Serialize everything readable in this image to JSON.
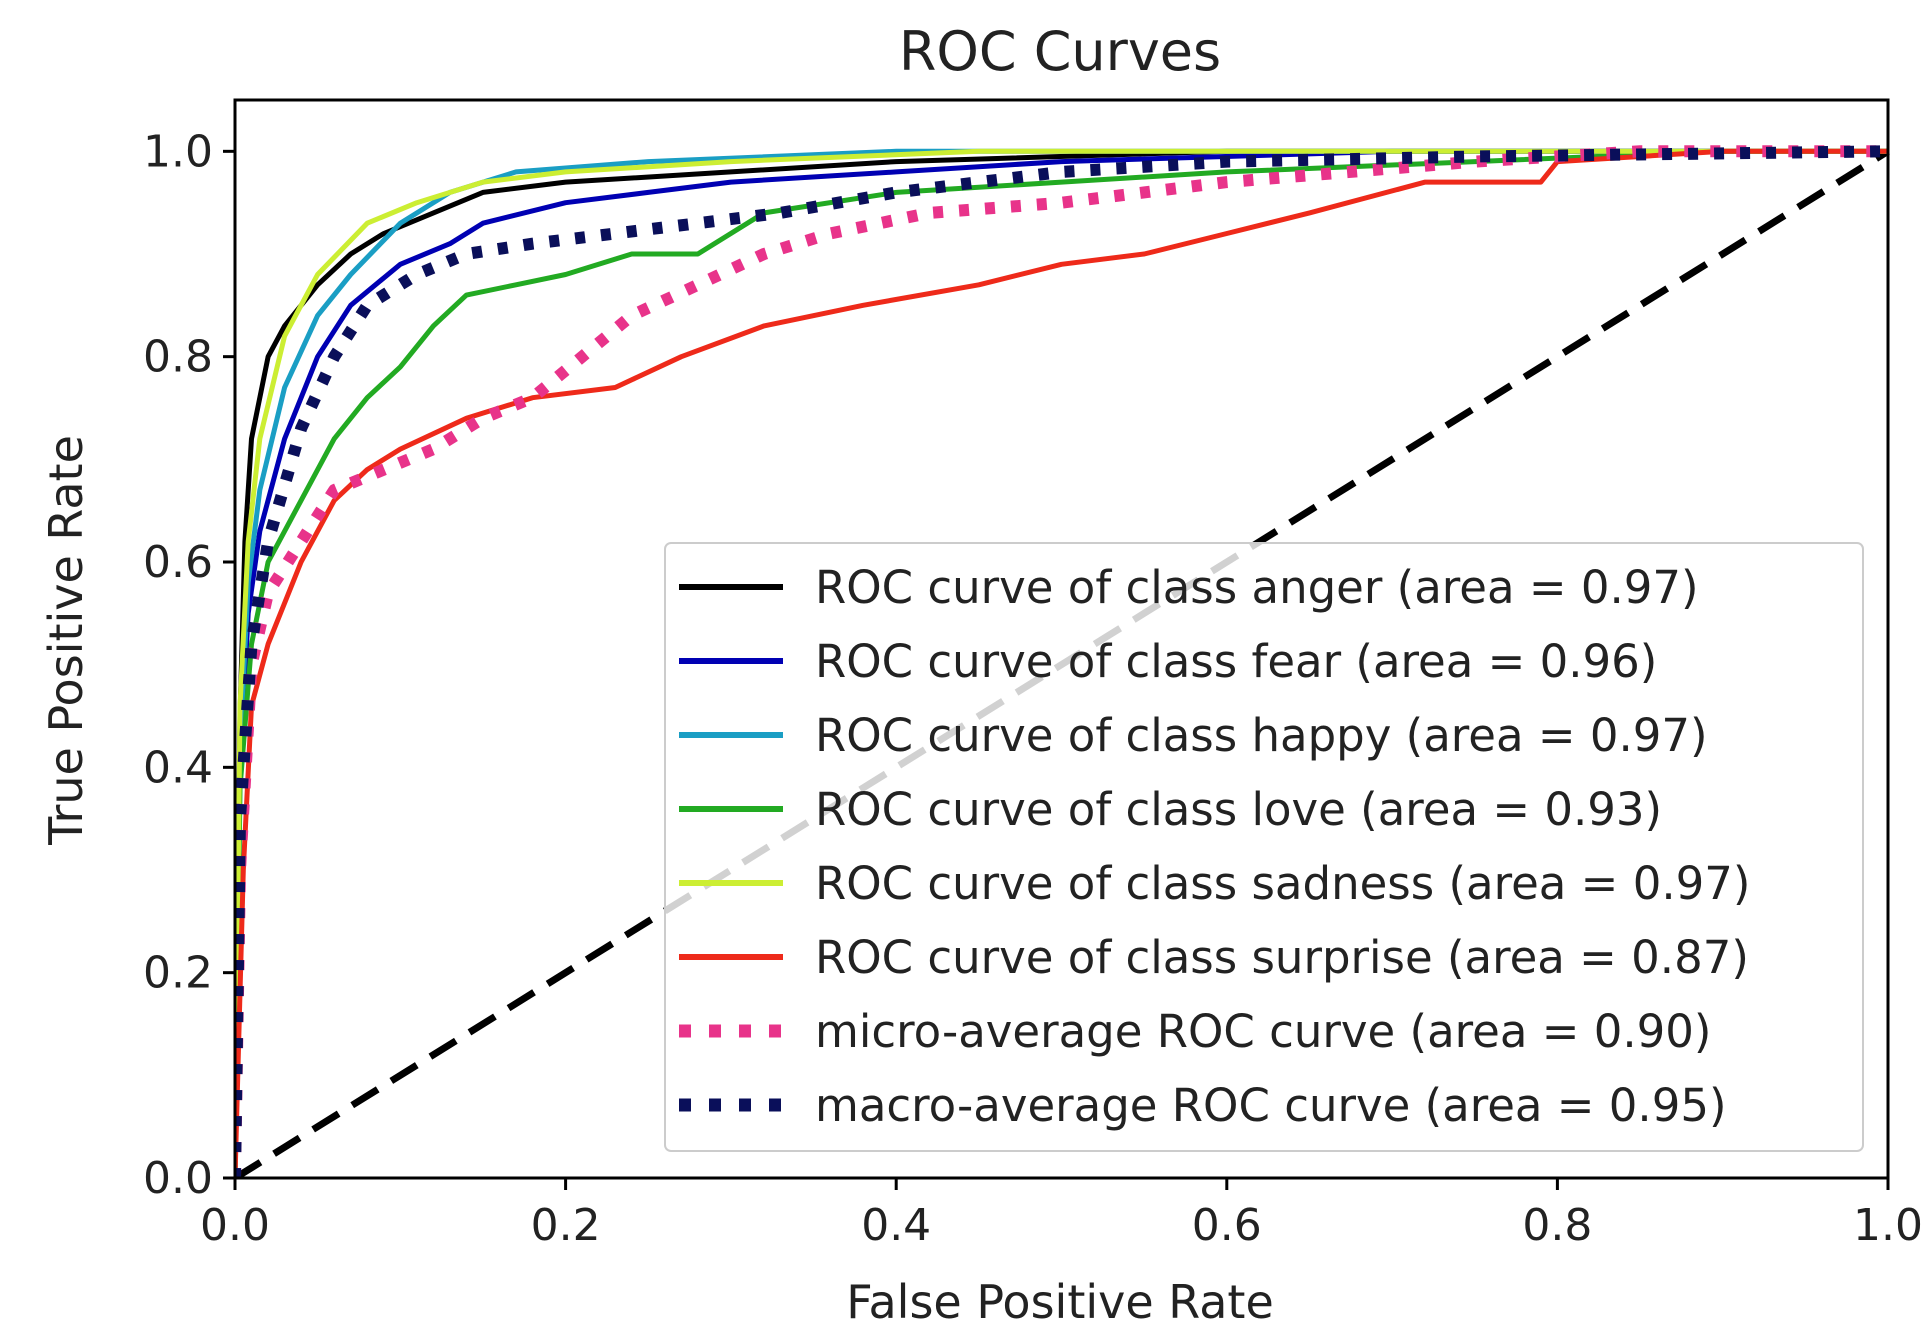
{
  "chart_data": {
    "type": "line",
    "title": "ROC Curves",
    "xlabel": "False Positive Rate",
    "ylabel": "True Positive Rate",
    "xlim": [
      0.0,
      1.0
    ],
    "ylim": [
      0.0,
      1.05
    ],
    "xticks": [
      "0.0",
      "0.2",
      "0.4",
      "0.6",
      "0.8",
      "1.0"
    ],
    "yticks": [
      "0.0",
      "0.2",
      "0.4",
      "0.6",
      "0.8",
      "1.0"
    ],
    "grid": false,
    "legend_position": "lower-right",
    "series": [
      {
        "name": "ROC curve of class anger (area = 0.97)",
        "color": "#000000",
        "style": "solid",
        "points": [
          [
            0,
            0
          ],
          [
            0.003,
            0.45
          ],
          [
            0.006,
            0.62
          ],
          [
            0.01,
            0.72
          ],
          [
            0.02,
            0.8
          ],
          [
            0.03,
            0.83
          ],
          [
            0.05,
            0.87
          ],
          [
            0.07,
            0.9
          ],
          [
            0.09,
            0.92
          ],
          [
            0.12,
            0.94
          ],
          [
            0.15,
            0.96
          ],
          [
            0.2,
            0.97
          ],
          [
            0.3,
            0.98
          ],
          [
            0.4,
            0.99
          ],
          [
            0.6,
            1.0
          ],
          [
            1.0,
            1.0
          ]
        ]
      },
      {
        "name": "ROC curve of class fear (area = 0.96)",
        "color": "#0000b3",
        "style": "solid",
        "points": [
          [
            0,
            0
          ],
          [
            0.003,
            0.4
          ],
          [
            0.008,
            0.55
          ],
          [
            0.015,
            0.63
          ],
          [
            0.03,
            0.72
          ],
          [
            0.05,
            0.8
          ],
          [
            0.07,
            0.85
          ],
          [
            0.1,
            0.89
          ],
          [
            0.13,
            0.91
          ],
          [
            0.15,
            0.93
          ],
          [
            0.2,
            0.95
          ],
          [
            0.25,
            0.96
          ],
          [
            0.3,
            0.97
          ],
          [
            0.4,
            0.98
          ],
          [
            0.5,
            0.99
          ],
          [
            0.7,
            1.0
          ],
          [
            1.0,
            1.0
          ]
        ]
      },
      {
        "name": "ROC curve of class happy (area = 0.97)",
        "color": "#1a9ec4",
        "style": "solid",
        "points": [
          [
            0,
            0
          ],
          [
            0.003,
            0.42
          ],
          [
            0.008,
            0.58
          ],
          [
            0.015,
            0.67
          ],
          [
            0.03,
            0.77
          ],
          [
            0.05,
            0.84
          ],
          [
            0.07,
            0.88
          ],
          [
            0.1,
            0.93
          ],
          [
            0.13,
            0.96
          ],
          [
            0.17,
            0.98
          ],
          [
            0.25,
            0.99
          ],
          [
            0.4,
            1.0
          ],
          [
            1.0,
            1.0
          ]
        ]
      },
      {
        "name": "ROC curve of class love (area = 0.93)",
        "color": "#22aa22",
        "style": "solid",
        "points": [
          [
            0,
            0
          ],
          [
            0.003,
            0.38
          ],
          [
            0.01,
            0.52
          ],
          [
            0.02,
            0.6
          ],
          [
            0.04,
            0.66
          ],
          [
            0.06,
            0.72
          ],
          [
            0.08,
            0.76
          ],
          [
            0.1,
            0.79
          ],
          [
            0.12,
            0.83
          ],
          [
            0.14,
            0.86
          ],
          [
            0.17,
            0.87
          ],
          [
            0.2,
            0.88
          ],
          [
            0.24,
            0.9
          ],
          [
            0.28,
            0.9
          ],
          [
            0.32,
            0.94
          ],
          [
            0.4,
            0.96
          ],
          [
            0.5,
            0.97
          ],
          [
            0.6,
            0.98
          ],
          [
            0.75,
            0.99
          ],
          [
            0.9,
            1.0
          ],
          [
            1.0,
            1.0
          ]
        ]
      },
      {
        "name": "ROC curve of class sadness (area = 0.97)",
        "color": "#ccee33",
        "style": "solid",
        "points": [
          [
            0,
            0
          ],
          [
            0.003,
            0.46
          ],
          [
            0.008,
            0.62
          ],
          [
            0.015,
            0.72
          ],
          [
            0.03,
            0.82
          ],
          [
            0.05,
            0.88
          ],
          [
            0.08,
            0.93
          ],
          [
            0.11,
            0.95
          ],
          [
            0.15,
            0.97
          ],
          [
            0.2,
            0.98
          ],
          [
            0.3,
            0.99
          ],
          [
            0.45,
            1.0
          ],
          [
            1.0,
            1.0
          ]
        ]
      },
      {
        "name": "ROC curve of class surprise (area = 0.87)",
        "color": "#ee2a1a",
        "style": "solid",
        "points": [
          [
            0,
            0
          ],
          [
            0.005,
            0.3
          ],
          [
            0.01,
            0.46
          ],
          [
            0.02,
            0.52
          ],
          [
            0.04,
            0.6
          ],
          [
            0.06,
            0.66
          ],
          [
            0.08,
            0.69
          ],
          [
            0.1,
            0.71
          ],
          [
            0.14,
            0.74
          ],
          [
            0.18,
            0.76
          ],
          [
            0.23,
            0.77
          ],
          [
            0.27,
            0.8
          ],
          [
            0.32,
            0.83
          ],
          [
            0.38,
            0.85
          ],
          [
            0.45,
            0.87
          ],
          [
            0.5,
            0.89
          ],
          [
            0.55,
            0.9
          ],
          [
            0.6,
            0.92
          ],
          [
            0.65,
            0.94
          ],
          [
            0.72,
            0.97
          ],
          [
            0.79,
            0.97
          ],
          [
            0.8,
            0.99
          ],
          [
            0.9,
            1.0
          ],
          [
            1.0,
            1.0
          ]
        ]
      },
      {
        "name": "micro-average ROC curve (area = 0.90)",
        "color": "#e8338a",
        "style": "dotted",
        "points": [
          [
            0,
            0
          ],
          [
            0.003,
            0.3
          ],
          [
            0.01,
            0.5
          ],
          [
            0.02,
            0.57
          ],
          [
            0.04,
            0.62
          ],
          [
            0.06,
            0.67
          ],
          [
            0.09,
            0.69
          ],
          [
            0.12,
            0.71
          ],
          [
            0.15,
            0.74
          ],
          [
            0.18,
            0.76
          ],
          [
            0.21,
            0.8
          ],
          [
            0.24,
            0.84
          ],
          [
            0.28,
            0.87
          ],
          [
            0.32,
            0.9
          ],
          [
            0.36,
            0.92
          ],
          [
            0.42,
            0.94
          ],
          [
            0.5,
            0.95
          ],
          [
            0.6,
            0.97
          ],
          [
            0.75,
            0.99
          ],
          [
            0.85,
            1.0
          ],
          [
            1.0,
            1.0
          ]
        ]
      },
      {
        "name": "macro-average ROC curve (area = 0.95)",
        "color": "#0a0f5a",
        "style": "dotted",
        "points": [
          [
            0,
            0
          ],
          [
            0.003,
            0.35
          ],
          [
            0.01,
            0.52
          ],
          [
            0.02,
            0.62
          ],
          [
            0.04,
            0.73
          ],
          [
            0.06,
            0.8
          ],
          [
            0.08,
            0.85
          ],
          [
            0.11,
            0.88
          ],
          [
            0.14,
            0.9
          ],
          [
            0.18,
            0.91
          ],
          [
            0.23,
            0.92
          ],
          [
            0.28,
            0.93
          ],
          [
            0.33,
            0.94
          ],
          [
            0.4,
            0.96
          ],
          [
            0.5,
            0.98
          ],
          [
            0.6,
            0.99
          ],
          [
            0.75,
            0.995
          ],
          [
            1.0,
            1.0
          ]
        ]
      }
    ],
    "reference_line": {
      "from": [
        0,
        0
      ],
      "to": [
        1,
        1
      ],
      "color": "#000000",
      "style": "dashed"
    }
  }
}
